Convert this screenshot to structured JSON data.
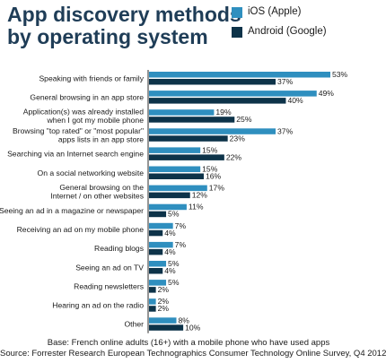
{
  "colors": {
    "title": "#1f3d57",
    "ios": "#2f8fbf",
    "android": "#0d3349",
    "divider": "#2a2a2a"
  },
  "header": {
    "title_line1": "App discovery methods",
    "title_line2": "by operating system"
  },
  "legend": [
    {
      "label": "iOS (Apple)",
      "color": "#2f8fbf"
    },
    {
      "label": "Android (Google)",
      "color": "#0d3349"
    }
  ],
  "chart_data": {
    "type": "bar",
    "orientation": "horizontal",
    "categories": [
      [
        "Speaking with friends or family"
      ],
      [
        "General browsing in an app store"
      ],
      [
        "Application(s) was already installed",
        "when I got my mobile phone"
      ],
      [
        "Browsing \"top rated\" or \"most popular\"",
        "apps lists in an app store"
      ],
      [
        "Searching via an Internet search engine"
      ],
      [
        "On a social networking website"
      ],
      [
        "General browsing on the",
        "Internet / on other websites"
      ],
      [
        "Seeing an ad in a magazine or newspaper"
      ],
      [
        "Receiving an ad on my mobile phone"
      ],
      [
        "Reading blogs"
      ],
      [
        "Seeing an ad on TV"
      ],
      [
        "Reading newsletters"
      ],
      [
        "Hearing an ad on the radio"
      ],
      [
        "Other"
      ]
    ],
    "series": [
      {
        "name": "iOS (Apple)",
        "values": [
          53,
          49,
          19,
          37,
          15,
          15,
          17,
          11,
          7,
          7,
          5,
          5,
          2,
          8
        ]
      },
      {
        "name": "Android (Google)",
        "values": [
          37,
          40,
          25,
          23,
          22,
          16,
          12,
          5,
          4,
          4,
          4,
          2,
          2,
          10
        ]
      }
    ],
    "value_suffix": "%",
    "xlim": [
      0,
      53
    ],
    "grid": false,
    "legend_position": "top-right"
  },
  "footnotes": [
    "Base: French online adults (16+) with a mobile phone who have used apps",
    "Source: Forrester Research European Technographics Consumer Technology Online Survey, Q4 2012"
  ]
}
